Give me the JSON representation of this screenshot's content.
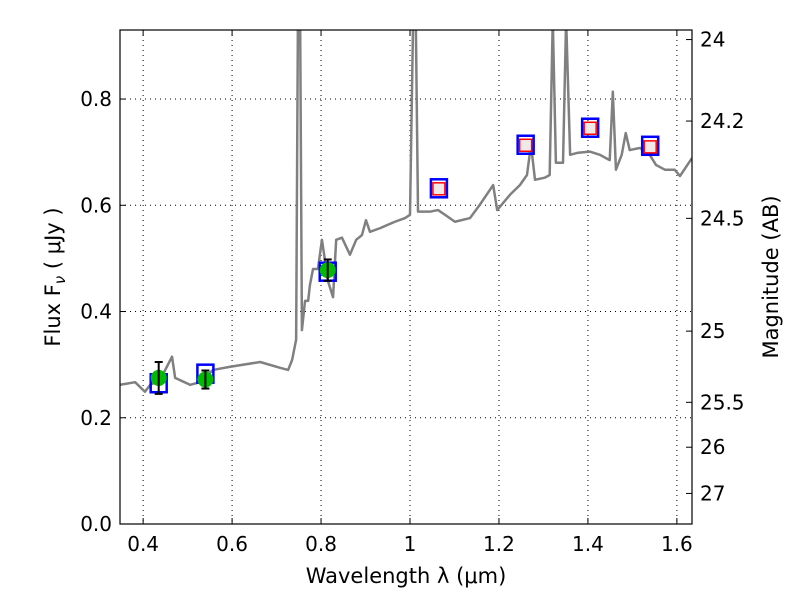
{
  "chart_data": {
    "type": "line",
    "xlabel": "Wavelength  λ (μm)",
    "ylabel": "Flux  F",
    "ylabel_sub": "ν",
    "ylabel_unit": "  ( μJy )",
    "y2label": "Magnitude (AB)",
    "xlim": [
      0.348,
      1.634
    ],
    "ylim": [
      0.0,
      0.93
    ],
    "grid": true,
    "xticks": [
      0.4,
      0.6,
      0.8,
      1.0,
      1.2,
      1.4,
      1.6
    ],
    "xtick_labels": [
      "0.4",
      "0.6",
      "0.8",
      "1",
      "1.2",
      "1.4",
      "1.6"
    ],
    "yticks": [
      0.0,
      0.2,
      0.4,
      0.6,
      0.8
    ],
    "ytick_labels": [
      "0.0",
      "0.2",
      "0.4",
      "0.6",
      "0.8"
    ],
    "y2ticks": [
      24,
      24.2,
      24.5,
      25,
      25.5,
      26,
      27
    ],
    "y2tick_labels": [
      "24",
      "24.2",
      "24.5",
      "25",
      "25.5",
      "26",
      "27"
    ],
    "ab_zeropoint": 23.9,
    "colors": {
      "spectrum": "#808080",
      "observed": "#00bb00",
      "model": "#0000ff",
      "upper": "#ff0000"
    },
    "series": [
      {
        "name": "spectrum",
        "type": "line",
        "x": [
          0.348,
          0.382,
          0.404,
          0.416,
          0.438,
          0.465,
          0.472,
          0.506,
          0.528,
          0.557,
          0.596,
          0.663,
          0.708,
          0.726,
          0.735,
          0.744,
          0.748,
          0.753,
          0.757,
          0.764,
          0.771,
          0.775,
          0.782,
          0.793,
          0.802,
          0.816,
          0.827,
          0.834,
          0.847,
          0.865,
          0.879,
          0.892,
          0.901,
          0.91,
          0.933,
          0.966,
          0.989,
          1.0,
          1.007,
          1.013,
          1.018,
          1.045,
          1.063,
          1.079,
          1.101,
          1.135,
          1.157,
          1.187,
          1.196,
          1.225,
          1.247,
          1.263,
          1.272,
          1.281,
          1.303,
          1.314,
          1.321,
          1.328,
          1.344,
          1.351,
          1.36,
          1.378,
          1.405,
          1.427,
          1.44,
          1.449,
          1.456,
          1.463,
          1.476,
          1.485,
          1.494,
          1.517,
          1.539,
          1.553,
          1.573,
          1.595,
          1.607,
          1.634
        ],
        "y": [
          0.262,
          0.267,
          0.249,
          0.262,
          0.271,
          0.315,
          0.275,
          0.262,
          0.267,
          0.29,
          0.296,
          0.305,
          0.294,
          0.29,
          0.309,
          0.347,
          0.95,
          0.95,
          0.365,
          0.42,
          0.42,
          0.45,
          0.48,
          0.48,
          0.535,
          0.456,
          0.427,
          0.535,
          0.539,
          0.507,
          0.535,
          0.544,
          0.572,
          0.55,
          0.557,
          0.569,
          0.576,
          0.582,
          0.95,
          0.95,
          0.588,
          0.588,
          0.591,
          0.582,
          0.569,
          0.576,
          0.601,
          0.638,
          0.591,
          0.62,
          0.638,
          0.657,
          0.714,
          0.648,
          0.652,
          0.657,
          0.95,
          0.68,
          0.68,
          0.95,
          0.695,
          0.699,
          0.701,
          0.695,
          0.689,
          0.685,
          0.814,
          0.667,
          0.695,
          0.736,
          0.704,
          0.708,
          0.695,
          0.676,
          0.667,
          0.667,
          0.655,
          0.689
        ]
      },
      {
        "name": "observed",
        "type": "errorbar",
        "x": [
          0.435,
          0.54,
          0.815
        ],
        "y": [
          0.275,
          0.272,
          0.478
        ],
        "yerr": [
          0.03,
          0.017,
          0.02
        ]
      },
      {
        "name": "model",
        "type": "scatter",
        "x": [
          0.435,
          0.54,
          0.815,
          1.065,
          1.26,
          1.405,
          1.54
        ],
        "y": [
          0.265,
          0.283,
          0.475,
          0.632,
          0.714,
          0.746,
          0.712
        ]
      },
      {
        "name": "upper",
        "type": "scatter",
        "x": [
          1.065,
          1.26,
          1.405,
          1.54
        ],
        "y": [
          0.631,
          0.713,
          0.745,
          0.71
        ]
      }
    ]
  }
}
